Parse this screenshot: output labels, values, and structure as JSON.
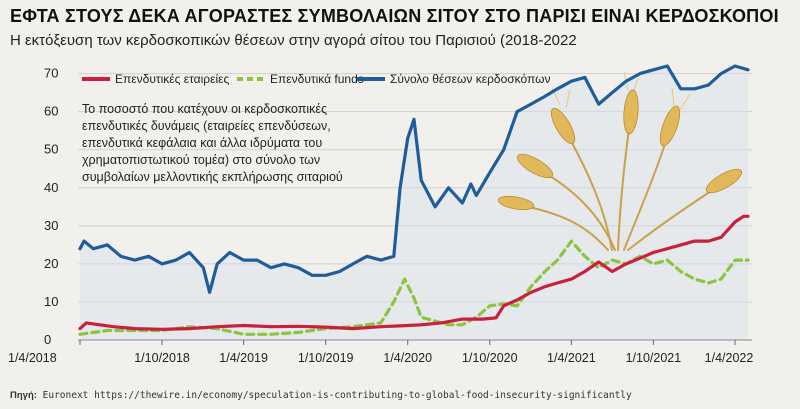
{
  "title": "ΕΦΤΑ ΣΤΟΥΣ ΔΕΚΑ ΑΓΟΡΑΣΤΕΣ ΣΥΜΒΟΛΑΙΩΝ ΣΙΤΟΥ ΣΤΟ ΠΑΡΙΣΙ ΕΙΝΑΙ ΚΕΡΔΟΣΚΟΠΟΙ",
  "subtitle": "Η εκτόξευση των κερδοσκοπικών θέσεων στην αγορά σίτου του Παρισιού (2018-2022",
  "source_label": "Πηγή:",
  "source_text": " Euronext https://thewire.in/economy/speculation-is-contributing-to-global-food-insecurity-significantly",
  "colors": {
    "total": "#1f5d9a",
    "companies": "#c8203e",
    "funds": "#8dc43e",
    "grid": "#cfcfcf",
    "area": "#d7e1e9"
  },
  "illustration": "wheat-ears",
  "chart_data": {
    "type": "line",
    "title": "ΕΦΤΑ ΣΤΟΥΣ ΔΕΚΑ ΑΓΟΡΑΣΤΕΣ ΣΥΜΒΟΛΑΙΩΝ ΣΙΤΟΥ ΣΤΟ ΠΑΡΙΣΙ ΕΙΝΑΙ ΚΕΡΔΟΣΚΟΠΟΙ",
    "subtitle": "Η εκτόξευση των κερδοσκοπικών θέσεων στην αγορά σίτου του Παρισιού (2018-2022",
    "xlabel": "",
    "ylabel": "",
    "x_range": [
      "2018-04-01",
      "2022-04-30"
    ],
    "ylim": [
      0,
      72
    ],
    "y_ticks": [
      0,
      10,
      20,
      30,
      40,
      50,
      60,
      70
    ],
    "x_ticks": [
      {
        "date": "2018-04-01",
        "label": "1/4/2018"
      },
      {
        "date": "2018-10-01",
        "label": "1/10/2018"
      },
      {
        "date": "2019-04-01",
        "label": "1/4/2019"
      },
      {
        "date": "2019-10-01",
        "label": "1/10/2019"
      },
      {
        "date": "2020-04-01",
        "label": "1/4/2020"
      },
      {
        "date": "2020-10-01",
        "label": "1/10/2020"
      },
      {
        "date": "2021-04-01",
        "label": "1/4/2021"
      },
      {
        "date": "2021-10-01",
        "label": "1/10/2021"
      },
      {
        "date": "2022-04-01",
        "label": "1/4/2022"
      }
    ],
    "grid": "horizontal",
    "legend_position": "top-left",
    "annotation": "Το ποσοστό που κατέχουν οι κερδοσκοπικές επενδυτικές δυνάμεις (εταιρείες επενδύσεων, επενδυτικά κεφάλαια και άλλα ιδρύματα του χρηματοπιστωτικού τομέα) στο σύνολο των συμβολαίων μελλοντικής εκπλήρωσης σιταριού",
    "series": [
      {
        "name": "Επενδυτικές εταιρείες",
        "style": "solid",
        "points": [
          [
            "2018-04-01",
            3
          ],
          [
            "2018-04-15",
            4.5
          ],
          [
            "2018-05-15",
            4
          ],
          [
            "2018-06-15",
            3.5
          ],
          [
            "2018-08-01",
            3
          ],
          [
            "2018-10-01",
            2.8
          ],
          [
            "2018-12-01",
            3
          ],
          [
            "2019-02-01",
            3.5
          ],
          [
            "2019-04-01",
            3.8
          ],
          [
            "2019-06-01",
            3.5
          ],
          [
            "2019-08-01",
            3.6
          ],
          [
            "2019-10-01",
            3.4
          ],
          [
            "2019-12-01",
            3
          ],
          [
            "2020-02-01",
            3.5
          ],
          [
            "2020-03-15",
            3.7
          ],
          [
            "2020-05-01",
            4
          ],
          [
            "2020-06-15",
            4.5
          ],
          [
            "2020-08-01",
            5.5
          ],
          [
            "2020-09-15",
            5.5
          ],
          [
            "2020-10-15",
            5.8
          ],
          [
            "2020-11-01",
            9
          ],
          [
            "2020-12-01",
            10.5
          ],
          [
            "2021-01-01",
            12.5
          ],
          [
            "2021-02-01",
            14
          ],
          [
            "2021-03-01",
            15
          ],
          [
            "2021-04-01",
            16
          ],
          [
            "2021-05-01",
            18
          ],
          [
            "2021-06-01",
            20.5
          ],
          [
            "2021-07-01",
            18
          ],
          [
            "2021-08-01",
            20
          ],
          [
            "2021-09-01",
            21.5
          ],
          [
            "2021-10-01",
            23
          ],
          [
            "2021-11-01",
            24
          ],
          [
            "2021-12-01",
            25
          ],
          [
            "2022-01-01",
            26
          ],
          [
            "2022-02-01",
            26
          ],
          [
            "2022-03-01",
            27
          ],
          [
            "2022-04-01",
            31
          ],
          [
            "2022-04-20",
            32.5
          ],
          [
            "2022-04-30",
            32.5
          ]
        ]
      },
      {
        "name": "Επενδυτικά funds",
        "style": "dashed",
        "points": [
          [
            "2018-04-01",
            1.5
          ],
          [
            "2018-06-01",
            2.5
          ],
          [
            "2018-08-01",
            2.5
          ],
          [
            "2018-10-01",
            2.5
          ],
          [
            "2018-12-01",
            3.5
          ],
          [
            "2019-02-01",
            3
          ],
          [
            "2019-04-01",
            1.5
          ],
          [
            "2019-06-01",
            1.5
          ],
          [
            "2019-08-01",
            2
          ],
          [
            "2019-10-01",
            3
          ],
          [
            "2019-12-01",
            3.5
          ],
          [
            "2020-02-01",
            4.5
          ],
          [
            "2020-03-01",
            10
          ],
          [
            "2020-03-25",
            16
          ],
          [
            "2020-04-15",
            11
          ],
          [
            "2020-05-01",
            6
          ],
          [
            "2020-06-01",
            5
          ],
          [
            "2020-07-01",
            4
          ],
          [
            "2020-08-01",
            4
          ],
          [
            "2020-09-01",
            6
          ],
          [
            "2020-10-01",
            9
          ],
          [
            "2020-11-01",
            9.5
          ],
          [
            "2020-12-01",
            9
          ],
          [
            "2021-01-01",
            14
          ],
          [
            "2021-02-01",
            18
          ],
          [
            "2021-03-01",
            21
          ],
          [
            "2021-04-01",
            26
          ],
          [
            "2021-05-01",
            22
          ],
          [
            "2021-06-01",
            19
          ],
          [
            "2021-07-01",
            21
          ],
          [
            "2021-08-01",
            20
          ],
          [
            "2021-09-01",
            22
          ],
          [
            "2021-10-01",
            20
          ],
          [
            "2021-11-01",
            21
          ],
          [
            "2021-12-01",
            18
          ],
          [
            "2022-01-01",
            16
          ],
          [
            "2022-02-01",
            15
          ],
          [
            "2022-03-01",
            16
          ],
          [
            "2022-04-01",
            21
          ],
          [
            "2022-04-30",
            21
          ]
        ]
      },
      {
        "name": "Σύνολο θέσεων κερδοσκόπων",
        "style": "solid",
        "points": [
          [
            "2018-04-01",
            24
          ],
          [
            "2018-04-10",
            26
          ],
          [
            "2018-05-01",
            24
          ],
          [
            "2018-06-01",
            25
          ],
          [
            "2018-07-01",
            22
          ],
          [
            "2018-08-01",
            21
          ],
          [
            "2018-09-01",
            22
          ],
          [
            "2018-10-01",
            20
          ],
          [
            "2018-11-01",
            21
          ],
          [
            "2018-12-01",
            23
          ],
          [
            "2019-01-01",
            19
          ],
          [
            "2019-01-15",
            12.5
          ],
          [
            "2019-02-01",
            20
          ],
          [
            "2019-03-01",
            23
          ],
          [
            "2019-04-01",
            21
          ],
          [
            "2019-05-01",
            21
          ],
          [
            "2019-06-01",
            19
          ],
          [
            "2019-07-01",
            20
          ],
          [
            "2019-08-01",
            19
          ],
          [
            "2019-09-01",
            17
          ],
          [
            "2019-10-01",
            17
          ],
          [
            "2019-11-01",
            18
          ],
          [
            "2019-12-01",
            20
          ],
          [
            "2020-01-01",
            22
          ],
          [
            "2020-02-01",
            21
          ],
          [
            "2020-03-01",
            22
          ],
          [
            "2020-03-15",
            40
          ],
          [
            "2020-04-01",
            53
          ],
          [
            "2020-04-15",
            58
          ],
          [
            "2020-05-01",
            42
          ],
          [
            "2020-06-01",
            35
          ],
          [
            "2020-07-01",
            40
          ],
          [
            "2020-08-01",
            36
          ],
          [
            "2020-08-20",
            41
          ],
          [
            "2020-09-01",
            38
          ],
          [
            "2020-10-01",
            44
          ],
          [
            "2020-11-01",
            50
          ],
          [
            "2020-12-01",
            60
          ],
          [
            "2021-01-01",
            62
          ],
          [
            "2021-02-01",
            64
          ],
          [
            "2021-03-01",
            66
          ],
          [
            "2021-04-01",
            68
          ],
          [
            "2021-05-01",
            69
          ],
          [
            "2021-06-01",
            62
          ],
          [
            "2021-07-01",
            65
          ],
          [
            "2021-08-01",
            68
          ],
          [
            "2021-09-01",
            70
          ],
          [
            "2021-10-01",
            71
          ],
          [
            "2021-11-01",
            72
          ],
          [
            "2021-12-01",
            66
          ],
          [
            "2022-01-01",
            66
          ],
          [
            "2022-02-01",
            67
          ],
          [
            "2022-03-01",
            70
          ],
          [
            "2022-04-01",
            72
          ],
          [
            "2022-04-30",
            71
          ]
        ]
      }
    ]
  }
}
